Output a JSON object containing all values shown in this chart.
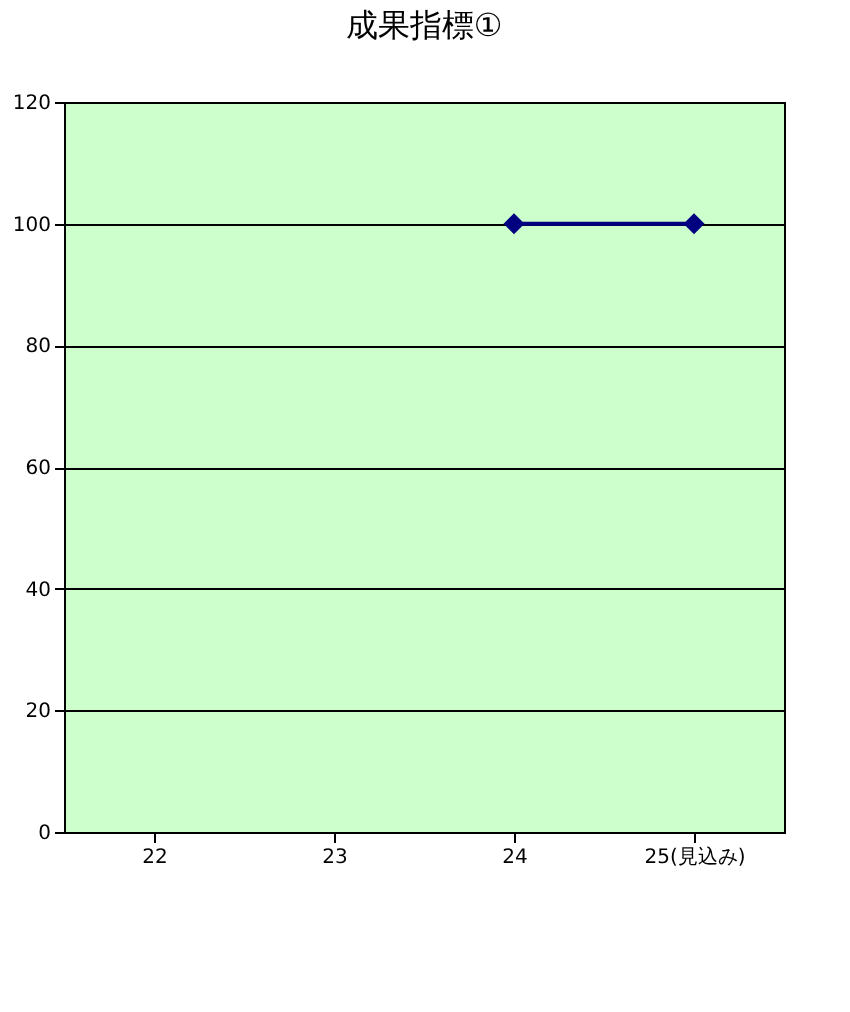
{
  "chart_data": {
    "type": "line",
    "title": "成果指標①",
    "categories": [
      "22",
      "23",
      "24",
      "25(見込み)"
    ],
    "series": [
      {
        "color": "#000080",
        "values": [
          null,
          null,
          100,
          100
        ]
      }
    ],
    "ylim": [
      0,
      120
    ],
    "yticks": [
      0,
      20,
      40,
      60,
      80,
      100,
      120
    ],
    "grid": "y",
    "marker": "diamond",
    "line_style": "solid",
    "legend": false
  }
}
